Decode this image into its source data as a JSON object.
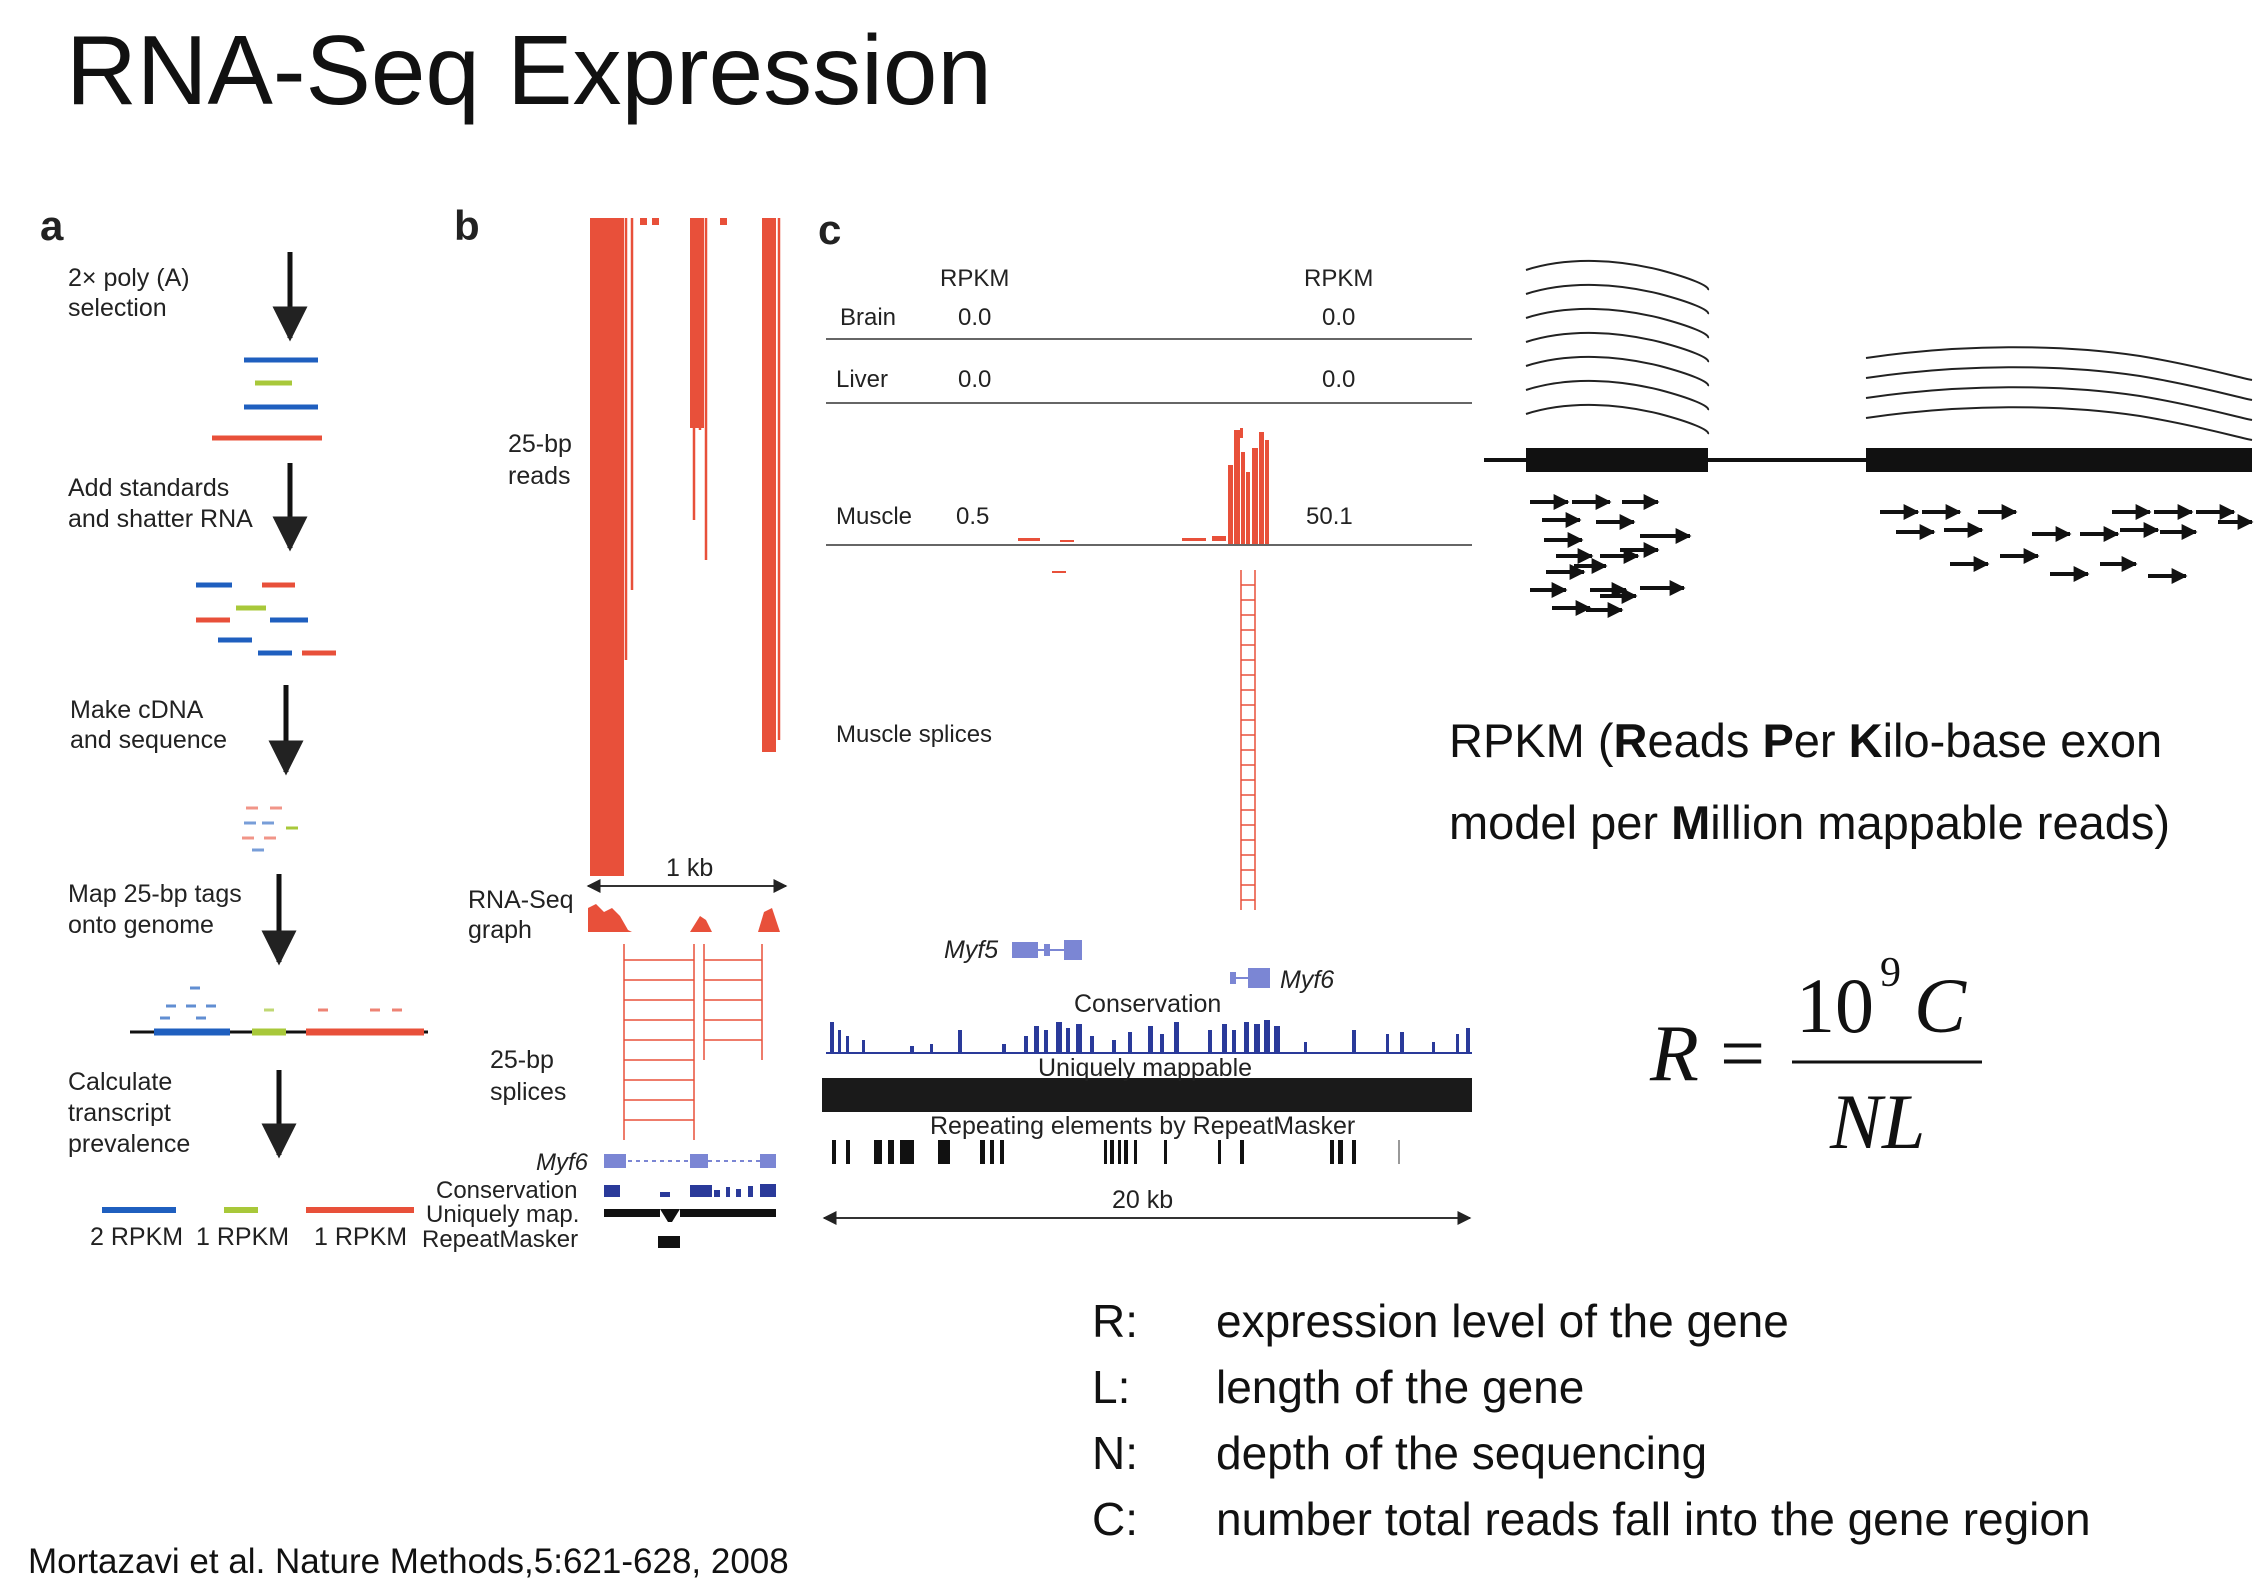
{
  "title": "RNA-Seq Expression",
  "panel_a": {
    "letter": "a",
    "steps": [
      [
        "2× poly (A)",
        "selection"
      ],
      [
        "Add standards",
        "and shatter RNA"
      ],
      [
        "Make cDNA",
        "and sequence"
      ],
      [
        "Map 25-bp tags",
        "onto genome"
      ],
      [
        "Calculate",
        "transcript",
        "prevalence"
      ]
    ],
    "rpkm_labels": [
      "2 RPKM",
      "1 RPKM",
      "1 RPKM"
    ]
  },
  "panel_b": {
    "letter": "b",
    "track_labels": {
      "reads": [
        "25-bp",
        "reads"
      ],
      "graph": [
        "RNA-Seq",
        "graph"
      ],
      "splices": [
        "25-bp",
        "splices"
      ],
      "gene": "Myf6",
      "conservation": "Conservation",
      "uniquely": "Uniquely map.",
      "repeatmasker": "RepeatMasker"
    },
    "scale": "1 kb"
  },
  "panel_c": {
    "letter": "c",
    "rpkm_header": "RPKM",
    "tissues": [
      {
        "name": "Brain",
        "left": "0.0",
        "right": "0.0"
      },
      {
        "name": "Liver",
        "left": "0.0",
        "right": "0.0"
      },
      {
        "name": "Muscle",
        "left": "0.5",
        "right": "50.1"
      }
    ],
    "splices_label": "Muscle splices",
    "genes": [
      "Myf5",
      "Myf6"
    ],
    "conservation": "Conservation",
    "uniquely": "Uniquely mappable",
    "repeats": "Repeating elements by RepeatMasker",
    "scale": "20 kb"
  },
  "rpkm_definition": {
    "line1_parts": [
      "RPKM (",
      "R",
      "eads ",
      "P",
      "er ",
      "K",
      "ilo-base exon"
    ],
    "line2_parts": [
      "model per ",
      "M",
      "illion mappable reads)"
    ]
  },
  "formula": {
    "lhs": "R",
    "eq": "=",
    "num_base": "10",
    "num_exp": "9",
    "num_var": "C",
    "den": "NL"
  },
  "legend": [
    {
      "symbol": "R:",
      "text": "expression level of the gene"
    },
    {
      "symbol": "L:",
      "text": "length of the gene"
    },
    {
      "symbol": "N:",
      "text": "depth of the sequencing"
    },
    {
      "symbol": "C:",
      "text": "number total reads fall into the gene region"
    }
  ],
  "citation": "Mortazavi et al. Nature Methods,5:621-628, 2008",
  "colors": {
    "read_red": "#e8503a",
    "blue": "#1f5fbf",
    "green": "#a8c83a",
    "gene_blue": "#7b86d4",
    "conservation_blue": "#2a3a9a"
  }
}
